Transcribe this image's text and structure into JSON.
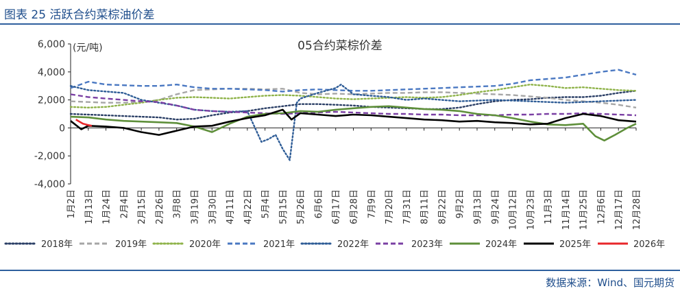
{
  "figure": {
    "title": "图表 25 活跃合约菜棕油价差",
    "source": "数据来源：Wind、国元期货"
  },
  "chart_data": {
    "type": "line",
    "title": "05合约菜棕价差",
    "ylabel": "(元/吨)",
    "xlabel": "",
    "ylim": [
      -4000,
      6000
    ],
    "yticks": [
      -4000,
      -2000,
      0,
      2000,
      4000,
      6000
    ],
    "ytick_labels": [
      "-4,000",
      "-2,000",
      "0",
      "2,000",
      "4,000",
      "6,000"
    ],
    "grid": false,
    "legend": "bottom",
    "x_tick_labels": [
      "1月2日",
      "1月13日",
      "1月24日",
      "2月4日",
      "2月15日",
      "2月26日",
      "3月8日",
      "3月19日",
      "3月30日",
      "4月11日",
      "4月22日",
      "5月4日",
      "5月15日",
      "5月26日",
      "6月6日",
      "6月17日",
      "6月28日",
      "7月9日",
      "7月20日",
      "7月31日",
      "8月11日",
      "8月22日",
      "9月2日",
      "9月13日",
      "9月24日",
      "10月12日",
      "10月23日",
      "11月3日",
      "11月14日",
      "11月25日",
      "12月6日",
      "12月17日",
      "12月28日"
    ],
    "x_index_range": [
      0,
      32
    ],
    "series": [
      {
        "name": "2018年",
        "color": "#2b3f66",
        "style": "dotted",
        "points": [
          [
            0,
            1000
          ],
          [
            1,
            950
          ],
          [
            2,
            900
          ],
          [
            3,
            850
          ],
          [
            4,
            800
          ],
          [
            5,
            750
          ],
          [
            6,
            600
          ],
          [
            7,
            650
          ],
          [
            8,
            900
          ],
          [
            9,
            1100
          ],
          [
            10,
            1200
          ],
          [
            11,
            1400
          ],
          [
            12,
            1550
          ],
          [
            13,
            1700
          ],
          [
            14,
            1700
          ],
          [
            15,
            1650
          ],
          [
            16,
            1600
          ],
          [
            17,
            1500
          ],
          [
            18,
            1450
          ],
          [
            19,
            1400
          ],
          [
            20,
            1350
          ],
          [
            21,
            1350
          ],
          [
            22,
            1450
          ],
          [
            23,
            1700
          ],
          [
            24,
            1900
          ],
          [
            25,
            2000
          ],
          [
            26,
            2050
          ],
          [
            27,
            2150
          ],
          [
            28,
            2200
          ],
          [
            29,
            2200
          ],
          [
            30,
            2300
          ],
          [
            31,
            2500
          ],
          [
            32,
            2650
          ]
        ]
      },
      {
        "name": "2019年",
        "color": "#a6a6a6",
        "style": "dashed",
        "points": [
          [
            0,
            1900
          ],
          [
            1,
            1850
          ],
          [
            2,
            1800
          ],
          [
            3,
            1800
          ],
          [
            4,
            1850
          ],
          [
            5,
            2000
          ],
          [
            6,
            2400
          ],
          [
            7,
            2700
          ],
          [
            8,
            2750
          ],
          [
            9,
            2800
          ],
          [
            10,
            2800
          ],
          [
            11,
            2750
          ],
          [
            12,
            2800
          ],
          [
            13,
            2500
          ],
          [
            14,
            2400
          ],
          [
            15,
            2450
          ],
          [
            16,
            2400
          ],
          [
            17,
            2450
          ],
          [
            18,
            2500
          ],
          [
            19,
            2500
          ],
          [
            20,
            2550
          ],
          [
            21,
            2550
          ],
          [
            22,
            2500
          ],
          [
            23,
            2450
          ],
          [
            24,
            2400
          ],
          [
            25,
            2350
          ],
          [
            26,
            2250
          ],
          [
            27,
            2150
          ],
          [
            28,
            2000
          ],
          [
            29,
            1900
          ],
          [
            30,
            1800
          ],
          [
            31,
            1650
          ],
          [
            32,
            1450
          ]
        ]
      },
      {
        "name": "2020年",
        "color": "#8fb34a",
        "style": "dotted",
        "points": [
          [
            0,
            1500
          ],
          [
            1,
            1450
          ],
          [
            2,
            1500
          ],
          [
            3,
            1650
          ],
          [
            4,
            1800
          ],
          [
            5,
            2000
          ],
          [
            6,
            2150
          ],
          [
            7,
            2200
          ],
          [
            8,
            2150
          ],
          [
            9,
            2100
          ],
          [
            10,
            2200
          ],
          [
            11,
            2300
          ],
          [
            12,
            2350
          ],
          [
            13,
            2300
          ],
          [
            14,
            2200
          ],
          [
            15,
            2100
          ],
          [
            16,
            2050
          ],
          [
            17,
            2100
          ],
          [
            18,
            2150
          ],
          [
            19,
            2200
          ],
          [
            20,
            2150
          ],
          [
            21,
            2200
          ],
          [
            22,
            2350
          ],
          [
            23,
            2550
          ],
          [
            24,
            2700
          ],
          [
            25,
            2900
          ],
          [
            26,
            3100
          ],
          [
            27,
            3000
          ],
          [
            28,
            2850
          ],
          [
            29,
            2900
          ],
          [
            30,
            2800
          ],
          [
            31,
            2700
          ],
          [
            32,
            2650
          ]
        ]
      },
      {
        "name": "2021年",
        "color": "#4a78c2",
        "style": "dashed",
        "points": [
          [
            0,
            2850
          ],
          [
            1,
            3300
          ],
          [
            2,
            3100
          ],
          [
            3,
            3050
          ],
          [
            4,
            3000
          ],
          [
            5,
            3000
          ],
          [
            6,
            3100
          ],
          [
            7,
            2900
          ],
          [
            8,
            2800
          ],
          [
            9,
            2800
          ],
          [
            10,
            2750
          ],
          [
            11,
            2700
          ],
          [
            12,
            2600
          ],
          [
            13,
            2700
          ],
          [
            14,
            2750
          ],
          [
            15,
            2700
          ],
          [
            16,
            2650
          ],
          [
            17,
            2650
          ],
          [
            18,
            2700
          ],
          [
            19,
            2750
          ],
          [
            20,
            2800
          ],
          [
            21,
            2850
          ],
          [
            22,
            2900
          ],
          [
            23,
            2950
          ],
          [
            24,
            3000
          ],
          [
            25,
            3150
          ],
          [
            26,
            3400
          ],
          [
            27,
            3500
          ],
          [
            28,
            3600
          ],
          [
            29,
            3800
          ],
          [
            30,
            4000
          ],
          [
            31,
            4150
          ],
          [
            32,
            3800
          ]
        ]
      },
      {
        "name": "2022年",
        "color": "#2e5c96",
        "style": "dotted",
        "points": [
          [
            0,
            3000
          ],
          [
            1,
            2700
          ],
          [
            2,
            2600
          ],
          [
            3,
            2500
          ],
          [
            4,
            2000
          ],
          [
            5,
            1800
          ],
          [
            6,
            1600
          ],
          [
            7,
            1300
          ],
          [
            8,
            1200
          ],
          [
            9,
            1150
          ],
          [
            10,
            1200
          ],
          [
            10.8,
            -1000
          ],
          [
            11.2,
            -800
          ],
          [
            11.6,
            -500
          ],
          [
            12,
            -1500
          ],
          [
            12.4,
            -2300
          ],
          [
            12.8,
            1800
          ],
          [
            13,
            2100
          ],
          [
            14,
            2500
          ],
          [
            15,
            2850
          ],
          [
            15.3,
            3100
          ],
          [
            16,
            2400
          ],
          [
            17,
            2300
          ],
          [
            18,
            2200
          ],
          [
            19,
            2000
          ],
          [
            20,
            2100
          ],
          [
            21,
            2000
          ],
          [
            22,
            1900
          ],
          [
            23,
            1950
          ],
          [
            24,
            2000
          ],
          [
            25,
            1950
          ],
          [
            26,
            1900
          ],
          [
            27,
            1850
          ],
          [
            28,
            1800
          ],
          [
            29,
            1850
          ],
          [
            30,
            1900
          ],
          [
            31,
            1950
          ],
          [
            32,
            2000
          ]
        ]
      },
      {
        "name": "2023年",
        "color": "#7a3fa3",
        "style": "dashed",
        "points": [
          [
            0,
            2400
          ],
          [
            1,
            2200
          ],
          [
            2,
            2100
          ],
          [
            3,
            2000
          ],
          [
            4,
            1900
          ],
          [
            5,
            1850
          ],
          [
            6,
            1600
          ],
          [
            7,
            1300
          ],
          [
            8,
            1200
          ],
          [
            9,
            1150
          ],
          [
            10,
            1100
          ],
          [
            11,
            1050
          ],
          [
            12,
            1000
          ],
          [
            13,
            1050
          ],
          [
            14,
            1100
          ],
          [
            15,
            1150
          ],
          [
            16,
            1100
          ],
          [
            17,
            1050
          ],
          [
            18,
            1000
          ],
          [
            19,
            1000
          ],
          [
            20,
            950
          ],
          [
            21,
            950
          ],
          [
            22,
            900
          ],
          [
            23,
            900
          ],
          [
            24,
            900
          ],
          [
            25,
            950
          ],
          [
            26,
            950
          ],
          [
            27,
            1000
          ],
          [
            28,
            1000
          ],
          [
            29,
            1050
          ],
          [
            30,
            1000
          ],
          [
            31,
            950
          ],
          [
            32,
            900
          ]
        ]
      },
      {
        "name": "2024年",
        "color": "#5e8f3a",
        "style": "solid",
        "points": [
          [
            0,
            800
          ],
          [
            1,
            750
          ],
          [
            2,
            600
          ],
          [
            3,
            500
          ],
          [
            4,
            450
          ],
          [
            5,
            400
          ],
          [
            6,
            350
          ],
          [
            7,
            100
          ],
          [
            8,
            -300
          ],
          [
            9,
            300
          ],
          [
            10,
            800
          ],
          [
            11,
            1000
          ],
          [
            12,
            1050
          ],
          [
            13,
            1200
          ],
          [
            14,
            1150
          ],
          [
            15,
            1300
          ],
          [
            16,
            1400
          ],
          [
            17,
            1500
          ],
          [
            18,
            1550
          ],
          [
            19,
            1450
          ],
          [
            20,
            1350
          ],
          [
            21,
            1300
          ],
          [
            22,
            1200
          ],
          [
            23,
            1000
          ],
          [
            24,
            900
          ],
          [
            25,
            700
          ],
          [
            26,
            450
          ],
          [
            27,
            250
          ],
          [
            28,
            200
          ],
          [
            29,
            300
          ],
          [
            29.7,
            -600
          ],
          [
            30.2,
            -900
          ],
          [
            30.8,
            -500
          ],
          [
            31.5,
            0
          ],
          [
            32,
            300
          ]
        ]
      },
      {
        "name": "2025年",
        "color": "#000000",
        "style": "solid",
        "points": [
          [
            0,
            500
          ],
          [
            0.6,
            -100
          ],
          [
            1,
            150
          ],
          [
            2,
            100
          ],
          [
            3,
            0
          ],
          [
            4,
            -300
          ],
          [
            5,
            -500
          ],
          [
            6,
            -200
          ],
          [
            7,
            100
          ],
          [
            8,
            150
          ],
          [
            9,
            450
          ],
          [
            10,
            700
          ],
          [
            11,
            900
          ],
          [
            12,
            1300
          ],
          [
            12.5,
            600
          ],
          [
            13,
            1050
          ],
          [
            14,
            950
          ],
          [
            15,
            850
          ],
          [
            16,
            950
          ],
          [
            17,
            900
          ],
          [
            18,
            800
          ],
          [
            19,
            700
          ],
          [
            20,
            600
          ],
          [
            21,
            550
          ],
          [
            22,
            450
          ],
          [
            23,
            500
          ],
          [
            24,
            400
          ],
          [
            25,
            350
          ],
          [
            26,
            250
          ],
          [
            27,
            300
          ],
          [
            28,
            700
          ],
          [
            29,
            1000
          ],
          [
            30,
            850
          ],
          [
            31,
            550
          ],
          [
            32,
            450
          ]
        ]
      },
      {
        "name": "2026年",
        "color": "#e8262a",
        "style": "solid",
        "points": [
          [
            0.3,
            600
          ],
          [
            0.7,
            300
          ],
          [
            1.0,
            200
          ],
          [
            1.2,
            150
          ]
        ]
      }
    ]
  }
}
